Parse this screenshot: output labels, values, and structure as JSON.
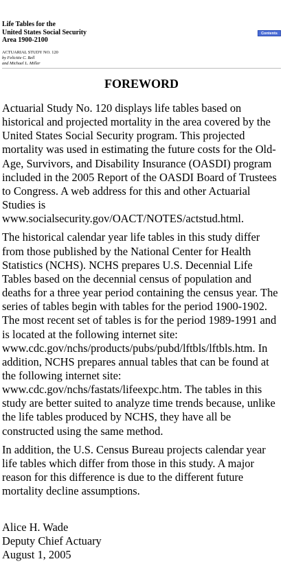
{
  "header": {
    "title_lines": [
      "Life Tables for the",
      "United States Social Security",
      "Area 1900-2100"
    ],
    "study_line": "ACTUARIAL STUDY NO. 120",
    "authors_lines": [
      "by Felicitie C. Bell",
      "and Michael L. Miller"
    ],
    "contents_button": "Contents",
    "accent_color": "#4a6cd6"
  },
  "heading": "FOREWORD",
  "paragraphs": [
    "Actuarial Study No. 120 displays life tables based on historical and projected mortality in the area covered by the United States Social Security program. This projected mortality was used in estimating the future costs for the Old-Age, Survivors, and Disability Insurance (OASDI) program included in the 2005 Report of the OASDI Board of Trustees to Congress. A web address for this and other Actuarial Studies is www.socialsecurity.gov/OACT/NOTES/actstud.html.",
    "The historical calendar year life tables in this study differ from those published by the National Center for Health Statistics (NCHS). NCHS prepares U.S. Decennial Life Tables based on the decennial census of population and deaths for a three year period containing the census year. The series of tables begin with tables for the period 1900-1902. The most recent set of tables is for the period 1989-1991 and is located at the following internet site: www.cdc.gov/nchs/products/pubs/pubd/lftbls/lftbls.htm. In addition, NCHS prepares annual tables that can be found at the following internet site: www.cdc.gov/nchs/fastats/lifeexpc.htm. The tables in this study are better suited to analyze time trends because, unlike the life tables produced by NCHS, they have all be constructed using the same method.",
    "In addition, the U.S. Census Bureau projects calendar year life tables which differ from those in this study. A major reason for this difference is due to the different future mortality decline assumptions."
  ],
  "signature": {
    "name": "Alice H. Wade",
    "role": "Deputy Chief Actuary",
    "date": "August 1, 2005"
  }
}
